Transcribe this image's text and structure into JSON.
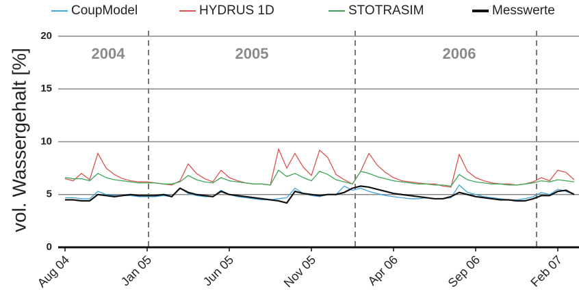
{
  "chart_data": {
    "type": "line",
    "ylabel": "vol. Wassergehalt [%]",
    "annotations": [
      "2004",
      "2005",
      "2006"
    ],
    "categories": [
      "Aug 04",
      null,
      null,
      null,
      null,
      null,
      null,
      null,
      null,
      null,
      "Jan 05",
      null,
      null,
      null,
      null,
      null,
      null,
      null,
      null,
      null,
      "Jun 05",
      null,
      null,
      null,
      null,
      null,
      null,
      null,
      null,
      null,
      "Nov 05",
      null,
      null,
      null,
      null,
      null,
      null,
      null,
      null,
      null,
      "Apr 06",
      null,
      null,
      null,
      null,
      null,
      null,
      null,
      null,
      null,
      "Sep 06",
      null,
      null,
      null,
      null,
      null,
      null,
      null,
      null,
      null,
      "Feb 07",
      null,
      null
    ],
    "ylim": [
      0,
      20
    ],
    "yticks": [
      0,
      5,
      10,
      15,
      20
    ],
    "grid": true,
    "legend": "top",
    "series": [
      {
        "name": "CoupModel",
        "color": "#3fa3dc",
        "values": [
          4.7,
          4.7,
          4.6,
          4.6,
          5.3,
          5.0,
          4.9,
          4.9,
          4.9,
          4.8,
          4.8,
          4.8,
          4.9,
          4.8,
          5.6,
          5.1,
          4.9,
          4.8,
          4.8,
          5.4,
          5.0,
          4.8,
          4.7,
          4.6,
          4.5,
          4.5,
          4.6,
          4.7,
          5.6,
          5.1,
          4.9,
          4.8,
          5.0,
          5.0,
          5.8,
          5.4,
          5.6,
          5.3,
          5.1,
          4.9,
          4.8,
          4.7,
          4.6,
          4.6,
          4.7,
          4.6,
          4.6,
          4.7,
          5.9,
          5.2,
          5.0,
          4.8,
          4.7,
          4.6,
          4.5,
          4.5,
          4.6,
          4.8,
          5.2,
          5.0,
          5.5,
          5.3,
          5.0
        ]
      },
      {
        "name": "HYDRUS 1D",
        "color": "#d9534f",
        "values": [
          6.5,
          6.3,
          7.0,
          6.4,
          8.9,
          7.5,
          6.9,
          6.5,
          6.3,
          6.2,
          6.2,
          6.1,
          6.0,
          5.9,
          6.3,
          7.9,
          7.0,
          6.5,
          6.2,
          7.3,
          6.6,
          6.3,
          6.1,
          6.0,
          6.0,
          5.9,
          9.3,
          7.5,
          8.9,
          7.6,
          6.8,
          9.2,
          8.5,
          6.9,
          6.4,
          6.0,
          7.2,
          8.9,
          7.8,
          7.1,
          6.6,
          6.3,
          6.2,
          6.1,
          6.0,
          6.0,
          5.8,
          5.7,
          8.8,
          7.2,
          6.6,
          6.3,
          6.1,
          6.0,
          6.0,
          5.9,
          6.0,
          6.2,
          6.6,
          6.3,
          7.3,
          7.1,
          6.4
        ]
      },
      {
        "name": "STOTRASIM",
        "color": "#3aa655",
        "values": [
          6.6,
          6.5,
          6.5,
          6.3,
          7.0,
          6.6,
          6.4,
          6.3,
          6.2,
          6.1,
          6.1,
          6.1,
          6.0,
          6.0,
          6.2,
          6.8,
          6.4,
          6.2,
          6.1,
          6.6,
          6.3,
          6.2,
          6.1,
          6.0,
          6.0,
          5.9,
          7.3,
          6.7,
          7.0,
          6.6,
          6.3,
          7.2,
          6.9,
          6.4,
          6.2,
          6.0,
          7.2,
          7.0,
          6.7,
          6.5,
          6.3,
          6.2,
          6.1,
          6.0,
          6.0,
          5.9,
          5.9,
          5.8,
          6.9,
          6.4,
          6.2,
          6.1,
          6.0,
          6.0,
          5.9,
          5.9,
          6.0,
          6.1,
          6.3,
          6.2,
          6.4,
          6.3,
          6.2
        ]
      },
      {
        "name": "Messwerte",
        "color": "#111111",
        "values": [
          4.5,
          4.5,
          4.4,
          4.4,
          5.0,
          4.9,
          4.8,
          4.9,
          5.0,
          4.9,
          4.9,
          4.9,
          5.0,
          4.8,
          5.6,
          5.2,
          5.0,
          4.9,
          4.8,
          5.3,
          5.0,
          4.9,
          4.8,
          4.7,
          4.6,
          4.5,
          4.4,
          4.2,
          5.3,
          5.1,
          5.0,
          4.9,
          5.0,
          5.0,
          5.2,
          5.6,
          5.8,
          5.7,
          5.5,
          5.3,
          5.1,
          5.0,
          4.9,
          4.8,
          4.7,
          4.6,
          4.6,
          4.8,
          5.2,
          5.0,
          4.8,
          4.7,
          4.6,
          4.5,
          4.5,
          4.4,
          4.4,
          4.6,
          4.9,
          4.9,
          5.3,
          5.4,
          5.0
        ]
      }
    ]
  }
}
